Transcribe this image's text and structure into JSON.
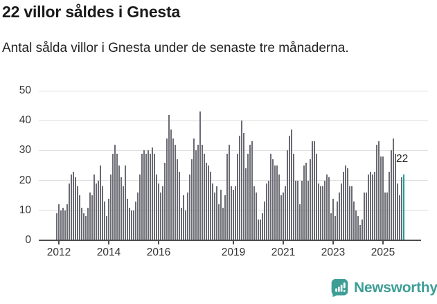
{
  "header": {
    "title": "22 villor såldes i Gnesta",
    "subtitle": "Antal sålda villor i Gnesta under de senaste tre månaderna."
  },
  "chart_data": {
    "type": "bar",
    "title": "22 villor såldes i Gnesta",
    "subtitle": "Antal sålda villor i Gnesta under de senaste tre månaderna.",
    "xlabel": "",
    "ylabel": "",
    "ylim": [
      0,
      50
    ],
    "yticks": [
      0,
      10,
      20,
      30,
      40,
      50
    ],
    "grid": true,
    "legend": "none",
    "x_frequency": "monthly",
    "x": [
      "2011-12",
      "2012-01",
      "2012-02",
      "2012-03",
      "2012-04",
      "2012-05",
      "2012-06",
      "2012-07",
      "2012-08",
      "2012-09",
      "2012-10",
      "2012-11",
      "2012-12",
      "2013-01",
      "2013-02",
      "2013-03",
      "2013-04",
      "2013-05",
      "2013-06",
      "2013-07",
      "2013-08",
      "2013-09",
      "2013-10",
      "2013-11",
      "2013-12",
      "2014-01",
      "2014-02",
      "2014-03",
      "2014-04",
      "2014-05",
      "2014-06",
      "2014-07",
      "2014-08",
      "2014-09",
      "2014-10",
      "2014-11",
      "2014-12",
      "2015-01",
      "2015-02",
      "2015-03",
      "2015-04",
      "2015-05",
      "2015-06",
      "2015-07",
      "2015-08",
      "2015-09",
      "2015-10",
      "2015-11",
      "2015-12",
      "2016-01",
      "2016-02",
      "2016-03",
      "2016-04",
      "2016-05",
      "2016-06",
      "2016-07",
      "2016-08",
      "2016-09",
      "2016-10",
      "2016-11",
      "2016-12",
      "2017-01",
      "2017-02",
      "2017-03",
      "2017-04",
      "2017-05",
      "2017-06",
      "2017-07",
      "2017-08",
      "2017-09",
      "2017-10",
      "2017-11",
      "2017-12",
      "2018-01",
      "2018-02",
      "2018-03",
      "2018-04",
      "2018-05",
      "2018-06",
      "2018-07",
      "2018-08",
      "2018-09",
      "2018-10",
      "2018-11",
      "2018-12",
      "2019-01",
      "2019-02",
      "2019-03",
      "2019-04",
      "2019-05",
      "2019-06",
      "2019-07",
      "2019-08",
      "2019-09",
      "2019-10",
      "2019-11",
      "2019-12",
      "2020-01",
      "2020-02",
      "2020-03",
      "2020-04",
      "2020-05",
      "2020-06",
      "2020-07",
      "2020-08",
      "2020-09",
      "2020-10",
      "2020-11",
      "2020-12",
      "2021-01",
      "2021-02",
      "2021-03",
      "2021-04",
      "2021-05",
      "2021-06",
      "2021-07",
      "2021-08",
      "2021-09",
      "2021-10",
      "2021-11",
      "2021-12",
      "2022-01",
      "2022-02",
      "2022-03",
      "2022-04",
      "2022-05",
      "2022-06",
      "2022-07",
      "2022-08",
      "2022-09",
      "2022-10",
      "2022-11",
      "2022-12",
      "2023-01",
      "2023-02",
      "2023-03",
      "2023-04",
      "2023-05",
      "2023-06",
      "2023-07",
      "2023-08",
      "2023-09",
      "2023-10",
      "2023-11",
      "2023-12",
      "2024-01",
      "2024-02",
      "2024-03",
      "2024-04",
      "2024-05",
      "2024-06",
      "2024-07",
      "2024-08",
      "2024-09",
      "2024-10",
      "2024-11",
      "2024-12",
      "2025-01",
      "2025-02",
      "2025-03",
      "2025-04",
      "2025-05",
      "2025-06",
      "2025-07",
      "2025-08",
      "2025-09",
      "2025-10",
      "2025-11"
    ],
    "values": [
      9,
      12,
      10,
      11,
      10,
      12,
      19,
      22,
      23,
      21,
      18,
      15,
      11,
      9,
      8,
      11,
      16,
      15,
      22,
      19,
      20,
      25,
      18,
      13,
      8,
      14,
      22,
      29,
      32,
      29,
      25,
      21,
      18,
      25,
      14,
      11,
      10,
      10,
      13,
      16,
      22,
      29,
      30,
      29,
      30,
      29,
      31,
      29,
      22,
      19,
      16,
      18,
      26,
      34,
      42,
      37,
      34,
      32,
      27,
      23,
      11,
      15,
      10,
      16,
      22,
      27,
      34,
      30,
      32,
      43,
      32,
      29,
      26,
      25,
      23,
      19,
      16,
      18,
      12,
      17,
      11,
      15,
      29,
      32,
      18,
      17,
      18,
      29,
      35,
      40,
      36,
      24,
      29,
      32,
      33,
      18,
      16,
      7,
      7,
      9,
      13,
      19,
      20,
      29,
      27,
      25,
      25,
      22,
      15,
      16,
      18,
      30,
      35,
      37,
      29,
      20,
      20,
      12,
      20,
      25,
      26,
      20,
      27,
      33,
      33,
      29,
      19,
      18,
      18,
      20,
      22,
      21,
      9,
      14,
      8,
      13,
      16,
      19,
      23,
      25,
      24,
      18,
      18,
      13,
      10,
      8,
      5,
      7,
      16,
      16,
      22,
      23,
      22,
      23,
      32,
      33,
      28,
      28,
      16,
      16,
      23,
      30,
      34,
      29,
      19,
      15,
      21,
      22
    ],
    "xticks": [
      {
        "label": "2012",
        "index": 1
      },
      {
        "label": "2014",
        "index": 25
      },
      {
        "label": "2016",
        "index": 49
      },
      {
        "label": "2019",
        "index": 85
      },
      {
        "label": "2021",
        "index": 109
      },
      {
        "label": "2023",
        "index": 133
      },
      {
        "label": "2025",
        "index": 157
      }
    ],
    "bar_color": "#6a6a73",
    "highlight": {
      "index": 167,
      "label": "22",
      "color": "#18a2a1"
    }
  },
  "colors": {
    "background": "#ffffff",
    "bars": "#6a6a73",
    "accent": "#18a2a1",
    "grid": "#dedede",
    "axis": "#4d4d4d",
    "text": "#222222",
    "brand": "#3e9e96"
  },
  "footer": {
    "brand": "Newsworthy",
    "logo_icon": "bar-chart-speech-bubble"
  }
}
